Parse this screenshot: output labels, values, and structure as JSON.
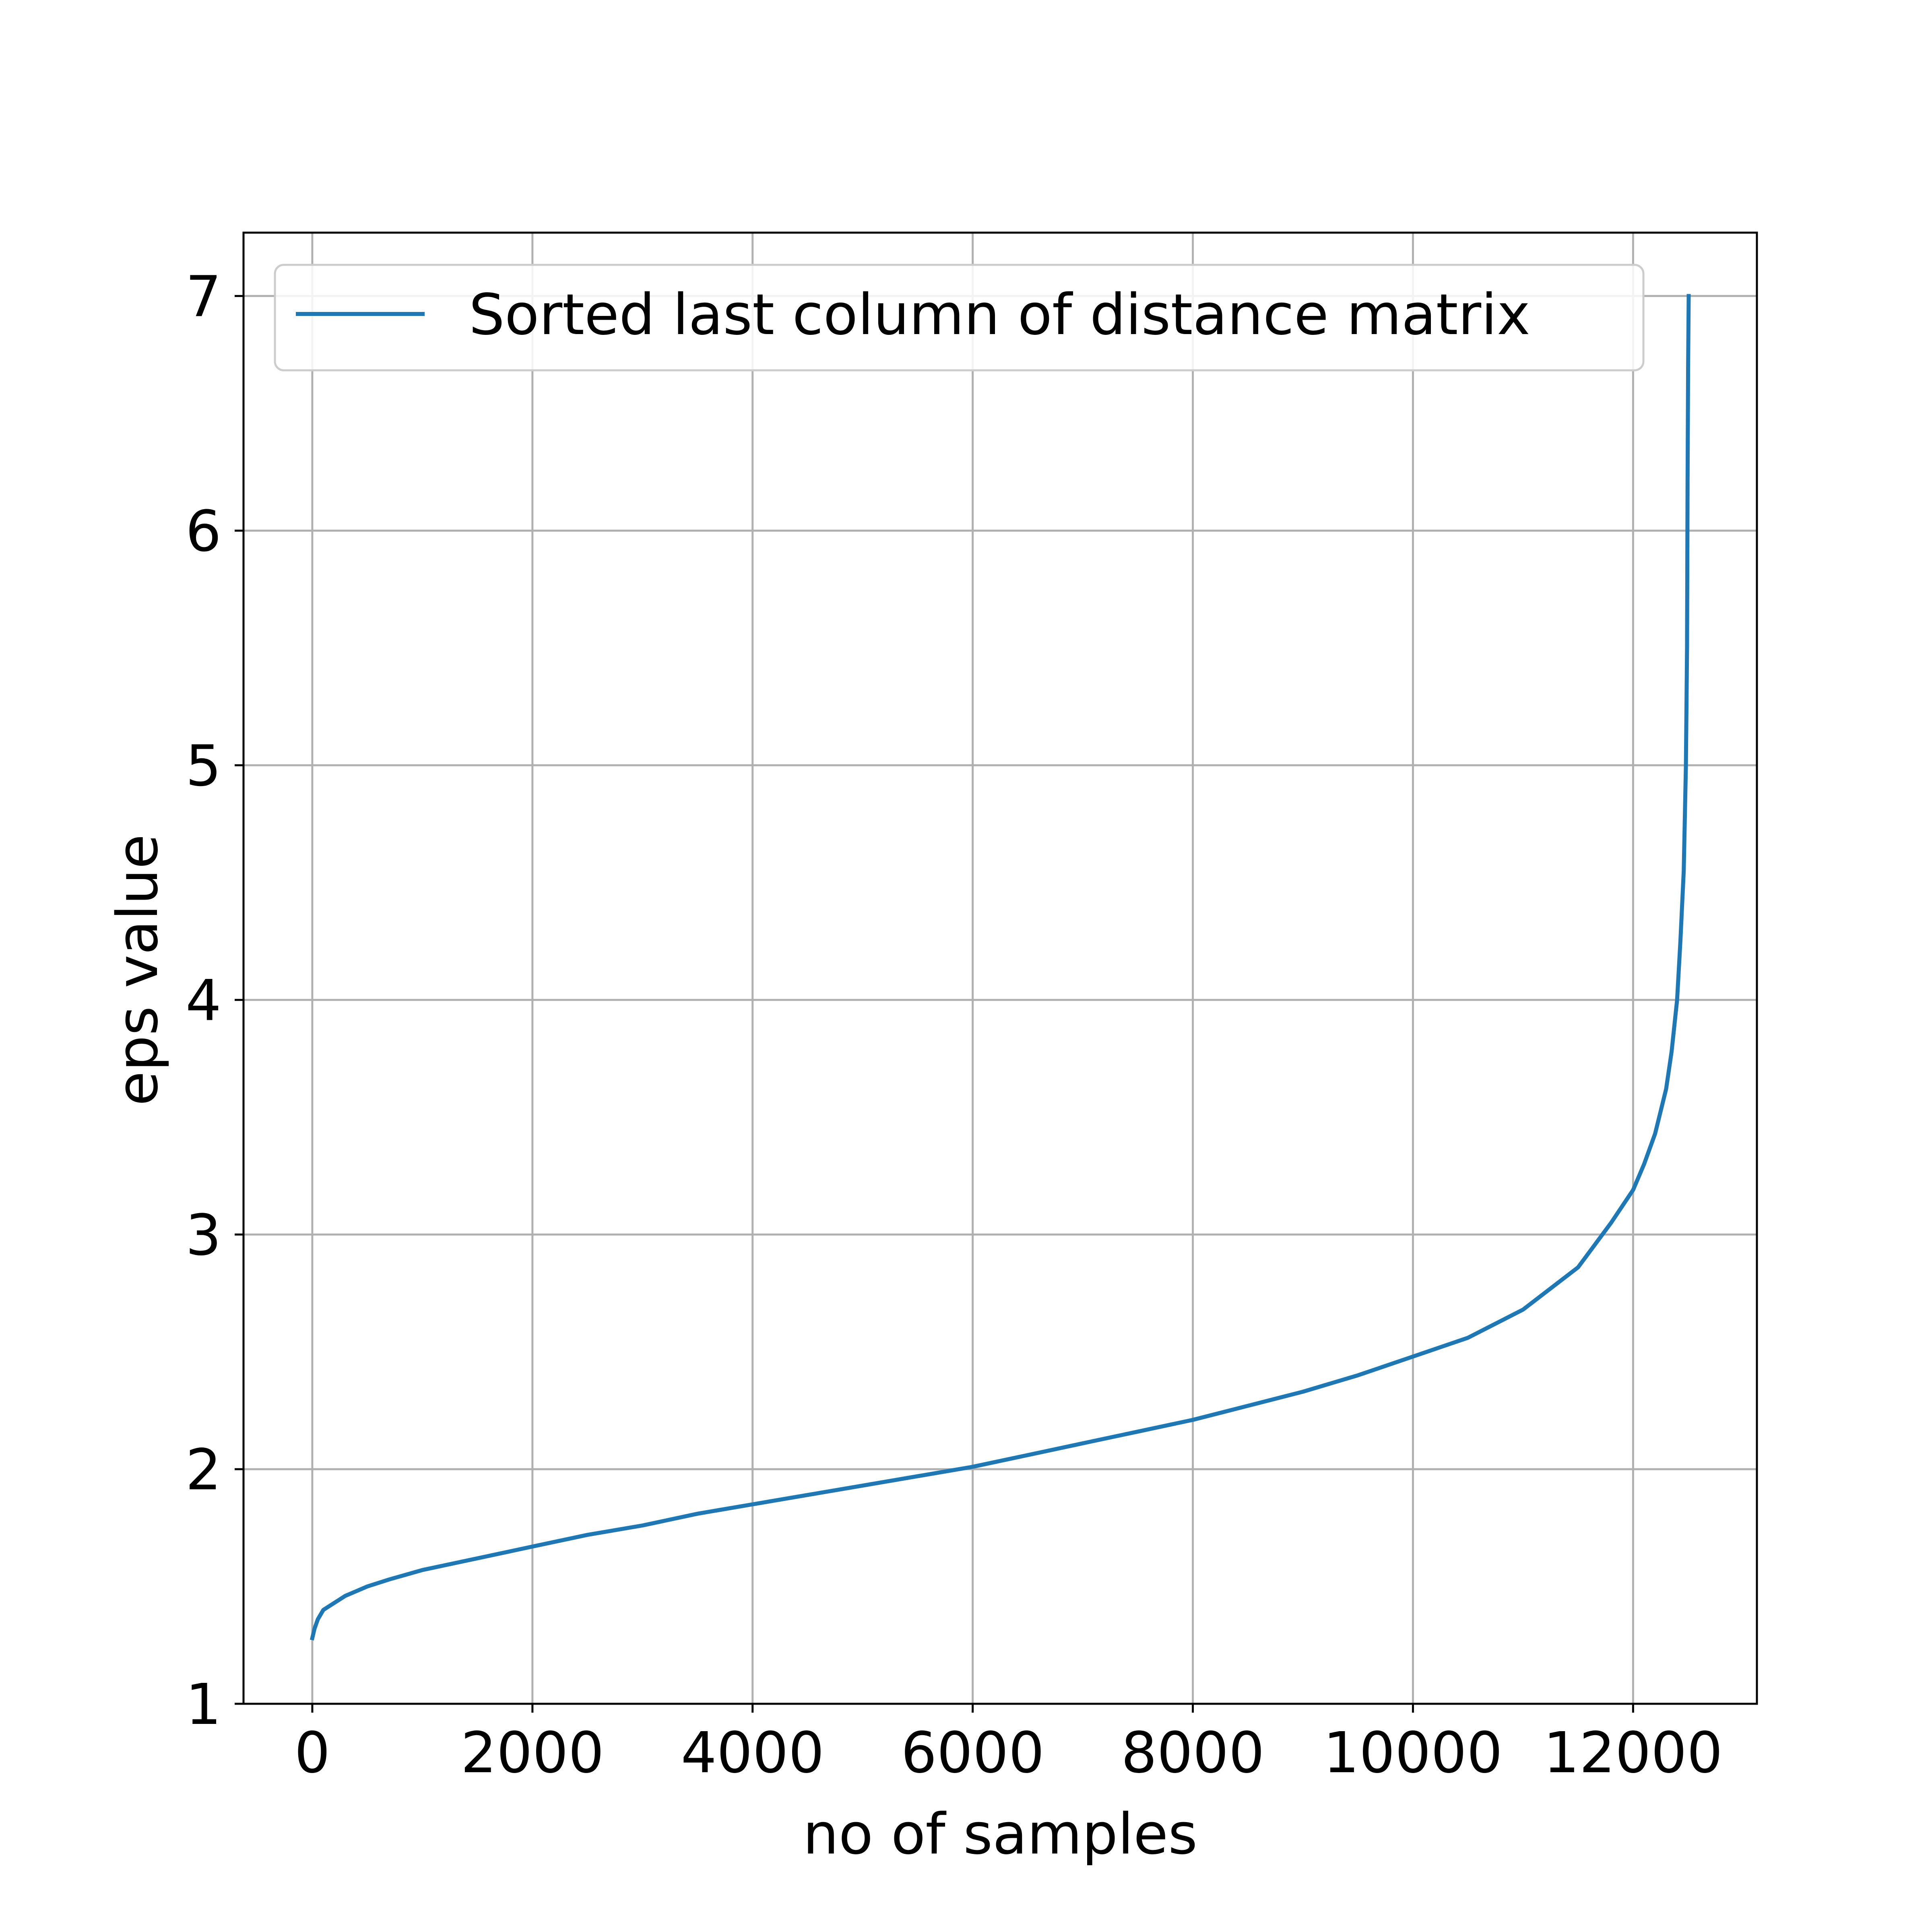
{
  "chart_data": {
    "type": "line",
    "xlabel": "no of samples",
    "ylabel": "eps value",
    "xlim": [
      -625,
      13125
    ],
    "ylim": [
      1,
      7.27
    ],
    "xticks": [
      0,
      2000,
      4000,
      6000,
      8000,
      10000,
      12000
    ],
    "yticks": [
      1,
      2,
      3,
      4,
      5,
      6,
      7
    ],
    "grid": true,
    "legend_position": "top",
    "series_color": "#1f77b4",
    "series": [
      {
        "name": "Sorted last column of distance matrix",
        "x": [
          0,
          20,
          50,
          100,
          200,
          300,
          400,
          500,
          700,
          1000,
          1500,
          2000,
          2500,
          3000,
          3500,
          4000,
          4500,
          5000,
          5500,
          6000,
          6500,
          7000,
          7500,
          8000,
          8500,
          9000,
          9500,
          10000,
          10500,
          11000,
          11500,
          11800,
          12000,
          12100,
          12200,
          12300,
          12350,
          12400,
          12430,
          12460,
          12480,
          12490,
          12495,
          12500,
          12505
        ],
        "y": [
          1.28,
          1.32,
          1.36,
          1.4,
          1.43,
          1.46,
          1.48,
          1.5,
          1.53,
          1.57,
          1.62,
          1.67,
          1.72,
          1.76,
          1.81,
          1.85,
          1.89,
          1.93,
          1.97,
          2.01,
          2.06,
          2.11,
          2.16,
          2.21,
          2.27,
          2.33,
          2.4,
          2.48,
          2.56,
          2.68,
          2.86,
          3.05,
          3.19,
          3.3,
          3.43,
          3.62,
          3.78,
          4.0,
          4.25,
          4.55,
          5.0,
          5.5,
          6.2,
          6.7,
          7.0
        ]
      }
    ]
  }
}
